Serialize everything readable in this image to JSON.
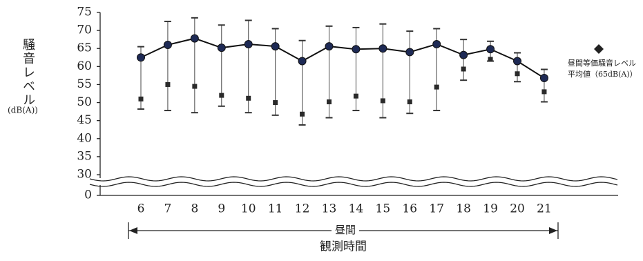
{
  "chart_data": {
    "type": "line",
    "y_label": "騒音レベル",
    "y_unit": "(dB(A))",
    "x_label": "観測時間",
    "span_label": "昼間",
    "categories": [
      "6",
      "7",
      "8",
      "9",
      "10",
      "11",
      "12",
      "13",
      "14",
      "15",
      "16",
      "17",
      "18",
      "19",
      "20",
      "21"
    ],
    "series": [
      {
        "color": "#1e2a55",
        "marker": "circle",
        "line": true,
        "values": [
          62.5,
          66,
          67.8,
          65.2,
          66.2,
          65.6,
          61.5,
          65.6,
          64.8,
          65,
          64,
          66.2,
          63.2,
          64.8,
          61.5,
          56.8
        ],
        "error_high": [
          65.5,
          72.5,
          73.5,
          71.5,
          72.8,
          70.5,
          67.2,
          71.2,
          70.8,
          71.8,
          69.8,
          70.5,
          67.5,
          67,
          63.8,
          59.2
        ],
        "error_low": [
          48.2,
          47.8,
          47.2,
          49,
          47.2,
          46.5,
          43.8,
          45.8,
          47.8,
          45.8,
          47,
          47.8,
          56.2,
          61.5,
          55.8,
          50.2
        ]
      },
      {
        "color": "#2a2a2a",
        "marker": "square",
        "line": false,
        "values": [
          51,
          55,
          54.5,
          52,
          51.2,
          50,
          46.8,
          50.2,
          51.8,
          50.5,
          50.2,
          54.3,
          59.3,
          62,
          58,
          53
        ]
      }
    ],
    "legend": {
      "marker": "diamond",
      "color": "#222",
      "lines": [
        "昼間等価騒音レベル",
        "平均値（65dB(A)）"
      ]
    },
    "ylim": [
      0,
      75
    ],
    "yticks": [
      0,
      30,
      35,
      40,
      45,
      50,
      55,
      60,
      65,
      70,
      75
    ],
    "axis_break": true
  }
}
